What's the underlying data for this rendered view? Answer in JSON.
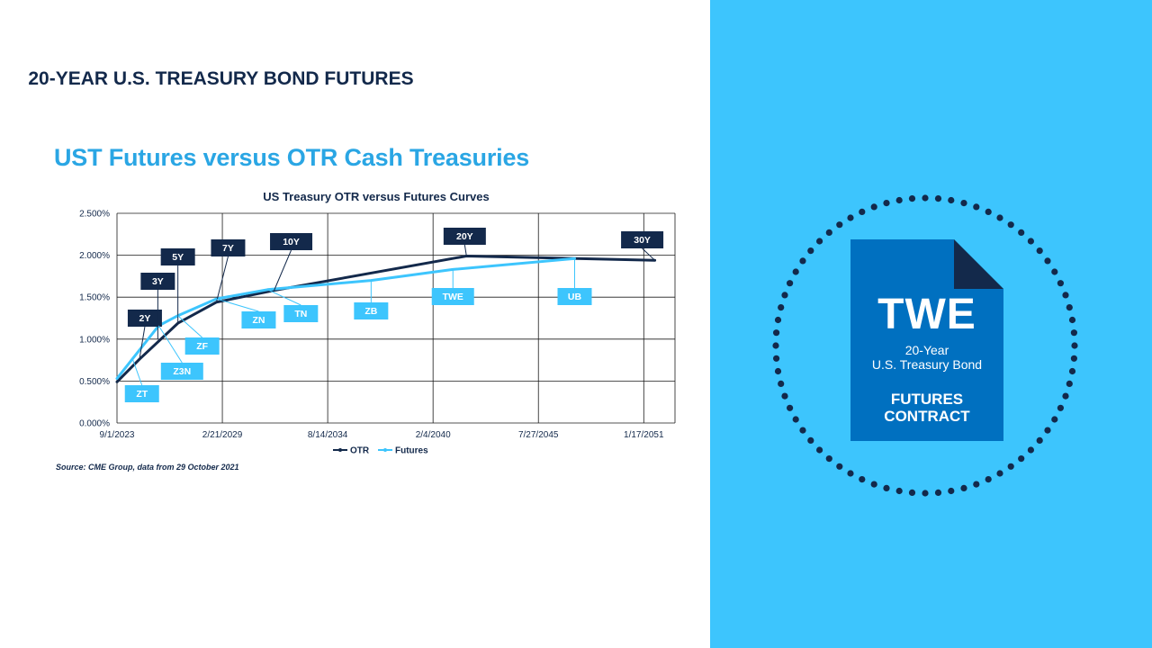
{
  "slide": {
    "title": "UST Futures versus OTR Cash Treasuries",
    "source": "Source: CME Group, data from 29 October 2021"
  },
  "panel": {
    "title": "20-YEAR U.S. TREASURY BOND FUTURES",
    "doc_code": "TWE",
    "doc_line1": "20-Year",
    "doc_line2": "U.S. Treasury Bond",
    "doc_line3": "FUTURES",
    "doc_line4": "CONTRACT",
    "colors": {
      "panel_bg": "#3dc5fd",
      "doc_blue": "#0070c0",
      "doc_fold": "#13294b",
      "dots": "#13294b"
    }
  },
  "chart_data": {
    "type": "line",
    "title": "US Treasury OTR versus Futures Curves",
    "xlabel": "",
    "ylabel": "",
    "x_axis": "date",
    "xlim": [
      "2023-09-01",
      "2052-09-01"
    ],
    "ylim": [
      0,
      2.5
    ],
    "x_ticks": [
      "9/1/2023",
      "2/21/2029",
      "8/14/2034",
      "2/4/2040",
      "7/27/2045",
      "1/17/2051"
    ],
    "y_ticks": [
      "0.000%",
      "0.500%",
      "1.000%",
      "1.500%",
      "2.000%",
      "2.500%"
    ],
    "grid": true,
    "legend": "bottom",
    "series": [
      {
        "name": "OTR",
        "color": "#13294b",
        "points": [
          [
            "2023-09-01",
            0.49
          ],
          [
            "2024-10-31",
            0.76
          ],
          [
            "2026-10-31",
            1.19
          ],
          [
            "2028-10-31",
            1.44
          ],
          [
            "2031-10-31",
            1.58
          ],
          [
            "2041-10-31",
            1.99
          ],
          [
            "2051-08-15",
            1.94
          ]
        ]
      },
      {
        "name": "Futures",
        "color": "#3dc5fd",
        "points": [
          [
            "2023-09-01",
            0.53
          ],
          [
            "2025-10-31",
            1.16
          ],
          [
            "2026-10-31",
            1.28
          ],
          [
            "2028-10-31",
            1.48
          ],
          [
            "2031-06-30",
            1.59
          ],
          [
            "2036-11-15",
            1.7
          ],
          [
            "2041-02-15",
            1.83
          ],
          [
            "2047-06-15",
            1.96
          ]
        ]
      }
    ],
    "annotations": [
      {
        "label": "2Y",
        "series": "OTR",
        "x": "2024-10-31",
        "y": 0.76,
        "side": "above"
      },
      {
        "label": "3Y",
        "series": "OTR",
        "x": "2025-10-15",
        "y": 1.0,
        "side": "above"
      },
      {
        "label": "5Y",
        "series": "OTR",
        "x": "2026-10-31",
        "y": 1.19,
        "side": "above"
      },
      {
        "label": "7Y",
        "series": "OTR",
        "x": "2028-10-31",
        "y": 1.44,
        "side": "above"
      },
      {
        "label": "10Y",
        "series": "OTR",
        "x": "2031-10-31",
        "y": 1.58,
        "side": "above"
      },
      {
        "label": "20Y",
        "series": "OTR",
        "x": "2041-10-31",
        "y": 1.99,
        "side": "above"
      },
      {
        "label": "30Y",
        "series": "OTR",
        "x": "2051-08-15",
        "y": 1.94,
        "side": "above"
      },
      {
        "label": "ZT",
        "series": "Futures",
        "x": "2024-06-30",
        "y": 0.75,
        "side": "below"
      },
      {
        "label": "Z3N",
        "series": "Futures",
        "x": "2025-10-31",
        "y": 1.16,
        "side": "below"
      },
      {
        "label": "ZF",
        "series": "Futures",
        "x": "2026-10-31",
        "y": 1.28,
        "side": "below"
      },
      {
        "label": "ZN",
        "series": "Futures",
        "x": "2028-10-31",
        "y": 1.48,
        "side": "below"
      },
      {
        "label": "TN",
        "series": "Futures",
        "x": "2031-06-30",
        "y": 1.59,
        "side": "below"
      },
      {
        "label": "ZB",
        "series": "Futures",
        "x": "2036-11-15",
        "y": 1.7,
        "side": "below"
      },
      {
        "label": "TWE",
        "series": "Futures",
        "x": "2041-02-15",
        "y": 1.83,
        "side": "below"
      },
      {
        "label": "UB",
        "series": "Futures",
        "x": "2047-06-15",
        "y": 1.96,
        "side": "below"
      }
    ]
  }
}
